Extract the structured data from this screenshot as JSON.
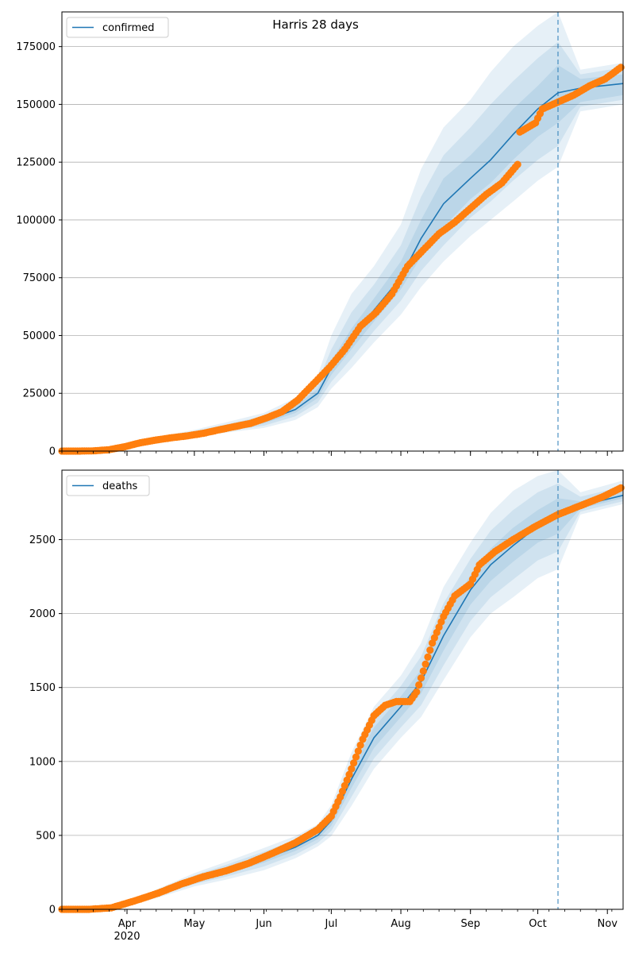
{
  "chart_data": [
    {
      "type": "line",
      "title": "Harris 28 days",
      "legend": {
        "label": "confirmed",
        "placement": "top-left"
      },
      "ylim": [
        0,
        190000
      ],
      "xlim": [
        "2020-03-03",
        "2020-11-08"
      ],
      "y_ticks": [
        0,
        25000,
        50000,
        75000,
        100000,
        125000,
        150000,
        175000
      ],
      "y_tick_labels": [
        "0",
        "25000",
        "50000",
        "75000",
        "100000",
        "125000",
        "150000",
        "175000"
      ],
      "x_tick_labels": [],
      "grid": "y",
      "forecast_start": "2020-10-10",
      "colors": {
        "model": "#1f77b4",
        "observed": "#ff7f0e",
        "band": "#1f77b4"
      },
      "model_series": {
        "name": "confirmed",
        "x": [
          "2020-03-03",
          "2020-03-20",
          "2020-04-01",
          "2020-04-15",
          "2020-05-01",
          "2020-05-15",
          "2020-06-01",
          "2020-06-15",
          "2020-06-25",
          "2020-07-01",
          "2020-07-10",
          "2020-07-20",
          "2020-08-01",
          "2020-08-10",
          "2020-08-20",
          "2020-09-01",
          "2020-09-10",
          "2020-09-20",
          "2020-10-01",
          "2020-10-10",
          "2020-10-20",
          "2020-11-08"
        ],
        "median": [
          0,
          300,
          2500,
          5000,
          7500,
          10000,
          13000,
          18000,
          25000,
          36000,
          48000,
          61000,
          75000,
          92000,
          107000,
          118000,
          126000,
          137000,
          148000,
          155000,
          157000,
          159000
        ],
        "bands": [
          {
            "lower": [
              0,
              250,
              2300,
              4700,
              7000,
              9300,
              12000,
              16500,
              23000,
              33000,
              44000,
              56000,
              70000,
              84000,
              97000,
              109000,
              116000,
              126000,
              136000,
              142000,
              151000,
              154000
            ],
            "upper": [
              0,
              350,
              2800,
              5400,
              8000,
              10700,
              14000,
              19500,
              27000,
              39000,
              53000,
              66000,
              82000,
              100000,
              118000,
              128000,
              137000,
              148000,
              158000,
              167000,
              161000,
              163000
            ]
          },
          {
            "lower": [
              0,
              200,
              2100,
              4400,
              6600,
              8700,
              11000,
              15000,
              21000,
              30000,
              40000,
              52000,
              65000,
              78000,
              89000,
              101000,
              108000,
              117000,
              126000,
              132000,
              149000,
              152000
            ],
            "upper": [
              0,
              400,
              3000,
              5800,
              8600,
              11500,
              15200,
              21000,
              30000,
              44000,
              60000,
              72000,
              89000,
              110000,
              128000,
              140000,
              150000,
              160000,
              170000,
              177000,
              163000,
              166000
            ],
            "note_omitted": false
          },
          {
            "lower": [
              0,
              150,
              1900,
              4100,
              6200,
              8000,
              10000,
              13500,
              19000,
              27000,
              36000,
              47000,
              59000,
              71000,
              82000,
              93000,
              100000,
              108000,
              117000,
              123000,
              147000,
              150000
            ],
            "upper": [
              0,
              450,
              3300,
              6200,
              9200,
              12400,
              16500,
              23000,
              33000,
              50000,
              68000,
              80000,
              98000,
              122000,
              140000,
              152000,
              164000,
              175000,
              184000,
              190000,
              165000,
              168000
            ]
          }
        ]
      },
      "observed_series": {
        "x": [
          "2020-03-03",
          "2020-03-10",
          "2020-03-17",
          "2020-03-24",
          "2020-03-31",
          "2020-04-07",
          "2020-04-14",
          "2020-04-21",
          "2020-04-28",
          "2020-05-05",
          "2020-05-12",
          "2020-05-19",
          "2020-05-26",
          "2020-06-02",
          "2020-06-09",
          "2020-06-16",
          "2020-06-23",
          "2020-06-30",
          "2020-07-07",
          "2020-07-14",
          "2020-07-21",
          "2020-07-28",
          "2020-08-04",
          "2020-08-11",
          "2020-08-18",
          "2020-08-25",
          "2020-09-01",
          "2020-09-08",
          "2020-09-15",
          "2020-09-22",
          "2020-09-23",
          "2020-09-30",
          "2020-10-03",
          "2020-10-10",
          "2020-10-17",
          "2020-10-24",
          "2020-10-31",
          "2020-11-07"
        ],
        "values": [
          0,
          0,
          100,
          600,
          1900,
          3600,
          4800,
          5800,
          6600,
          7700,
          9200,
          10600,
          12000,
          14300,
          17000,
          22000,
          29000,
          36000,
          44000,
          54000,
          60000,
          68000,
          80000,
          87000,
          94000,
          99000,
          105000,
          111000,
          116000,
          124000,
          138000,
          142000,
          148000,
          151000,
          154000,
          158000,
          161000,
          166000
        ]
      }
    },
    {
      "type": "line",
      "title": "",
      "legend": {
        "label": "deaths",
        "placement": "top-left"
      },
      "ylim": [
        0,
        2970
      ],
      "xlim": [
        "2020-03-03",
        "2020-11-08"
      ],
      "y_ticks": [
        0,
        500,
        1000,
        1500,
        2000,
        2500
      ],
      "y_tick_labels": [
        "0",
        "500",
        "1000",
        "1500",
        "2000",
        "2500"
      ],
      "x_ticks": [
        "2020-04-01",
        "2020-05-01",
        "2020-06-01",
        "2020-07-01",
        "2020-08-01",
        "2020-09-01",
        "2020-10-01",
        "2020-11-01"
      ],
      "x_tick_labels": [
        "Apr",
        "May",
        "Jun",
        "Jul",
        "Aug",
        "Sep",
        "Oct",
        "Nov"
      ],
      "x_year_label": "2020",
      "grid": "y",
      "forecast_start": "2020-10-10",
      "colors": {
        "model": "#1f77b4",
        "observed": "#ff7f0e",
        "band": "#1f77b4"
      },
      "model_series": {
        "name": "deaths",
        "x": [
          "2020-03-03",
          "2020-03-20",
          "2020-04-01",
          "2020-04-15",
          "2020-05-01",
          "2020-05-15",
          "2020-06-01",
          "2020-06-15",
          "2020-06-25",
          "2020-07-01",
          "2020-07-10",
          "2020-07-20",
          "2020-08-01",
          "2020-08-10",
          "2020-08-20",
          "2020-09-01",
          "2020-09-10",
          "2020-09-20",
          "2020-10-01",
          "2020-10-10",
          "2020-10-20",
          "2020-11-08"
        ],
        "median": [
          0,
          5,
          30,
          110,
          200,
          260,
          340,
          420,
          500,
          600,
          880,
          1160,
          1370,
          1540,
          1850,
          2160,
          2330,
          2460,
          2590,
          2650,
          2730,
          2800
        ],
        "bands": [
          {
            "lower": [
              0,
              4,
              27,
              100,
              185,
              240,
              315,
              395,
              475,
              565,
              820,
              1090,
              1300,
              1460,
              1750,
              2060,
              2220,
              2350,
              2480,
              2540,
              2710,
              2780
            ],
            "upper": [
              0,
              6,
              33,
              120,
              215,
              280,
              365,
              445,
              525,
              635,
              940,
              1230,
              1440,
              1620,
              1960,
              2260,
              2440,
              2580,
              2700,
              2780,
              2760,
              2830
            ]
          },
          {
            "lower": [
              0,
              3,
              24,
              90,
              170,
              220,
              290,
              370,
              450,
              530,
              760,
              1020,
              1230,
              1380,
              1650,
              1950,
              2110,
              2230,
              2360,
              2420,
              2690,
              2760
            ],
            "upper": [
              0,
              7,
              36,
              130,
              230,
              300,
              390,
              470,
              550,
              670,
              1000,
              1300,
              1510,
              1710,
              2070,
              2370,
              2560,
              2700,
              2820,
              2880,
              2790,
              2860
            ]
          },
          {
            "lower": [
              0,
              2,
              21,
              80,
              155,
              200,
              265,
              345,
              425,
              495,
              700,
              950,
              1160,
              1300,
              1550,
              1840,
              2000,
              2110,
              2240,
              2300,
              2670,
              2740
            ],
            "upper": [
              0,
              8,
              39,
              140,
              245,
              320,
              415,
              495,
              575,
              705,
              1060,
              1370,
              1580,
              1800,
              2180,
              2480,
              2680,
              2830,
              2930,
              2970,
              2820,
              2900
            ]
          }
        ]
      },
      "observed_series": {
        "x": [
          "2020-03-03",
          "2020-03-15",
          "2020-03-25",
          "2020-04-05",
          "2020-04-15",
          "2020-04-25",
          "2020-05-05",
          "2020-05-15",
          "2020-05-25",
          "2020-06-05",
          "2020-06-15",
          "2020-06-25",
          "2020-07-01",
          "2020-07-05",
          "2020-07-10",
          "2020-07-15",
          "2020-07-20",
          "2020-07-25",
          "2020-07-30",
          "2020-08-05",
          "2020-08-08",
          "2020-08-15",
          "2020-08-20",
          "2020-08-25",
          "2020-09-01",
          "2020-09-05",
          "2020-09-12",
          "2020-09-20",
          "2020-09-30",
          "2020-10-10",
          "2020-10-20",
          "2020-10-30",
          "2020-11-07"
        ],
        "values": [
          0,
          0,
          10,
          60,
          110,
          170,
          220,
          260,
          310,
          380,
          450,
          540,
          630,
          760,
          950,
          1150,
          1310,
          1380,
          1405,
          1405,
          1470,
          1800,
          1980,
          2120,
          2200,
          2330,
          2420,
          2500,
          2590,
          2670,
          2730,
          2790,
          2850
        ]
      }
    }
  ]
}
